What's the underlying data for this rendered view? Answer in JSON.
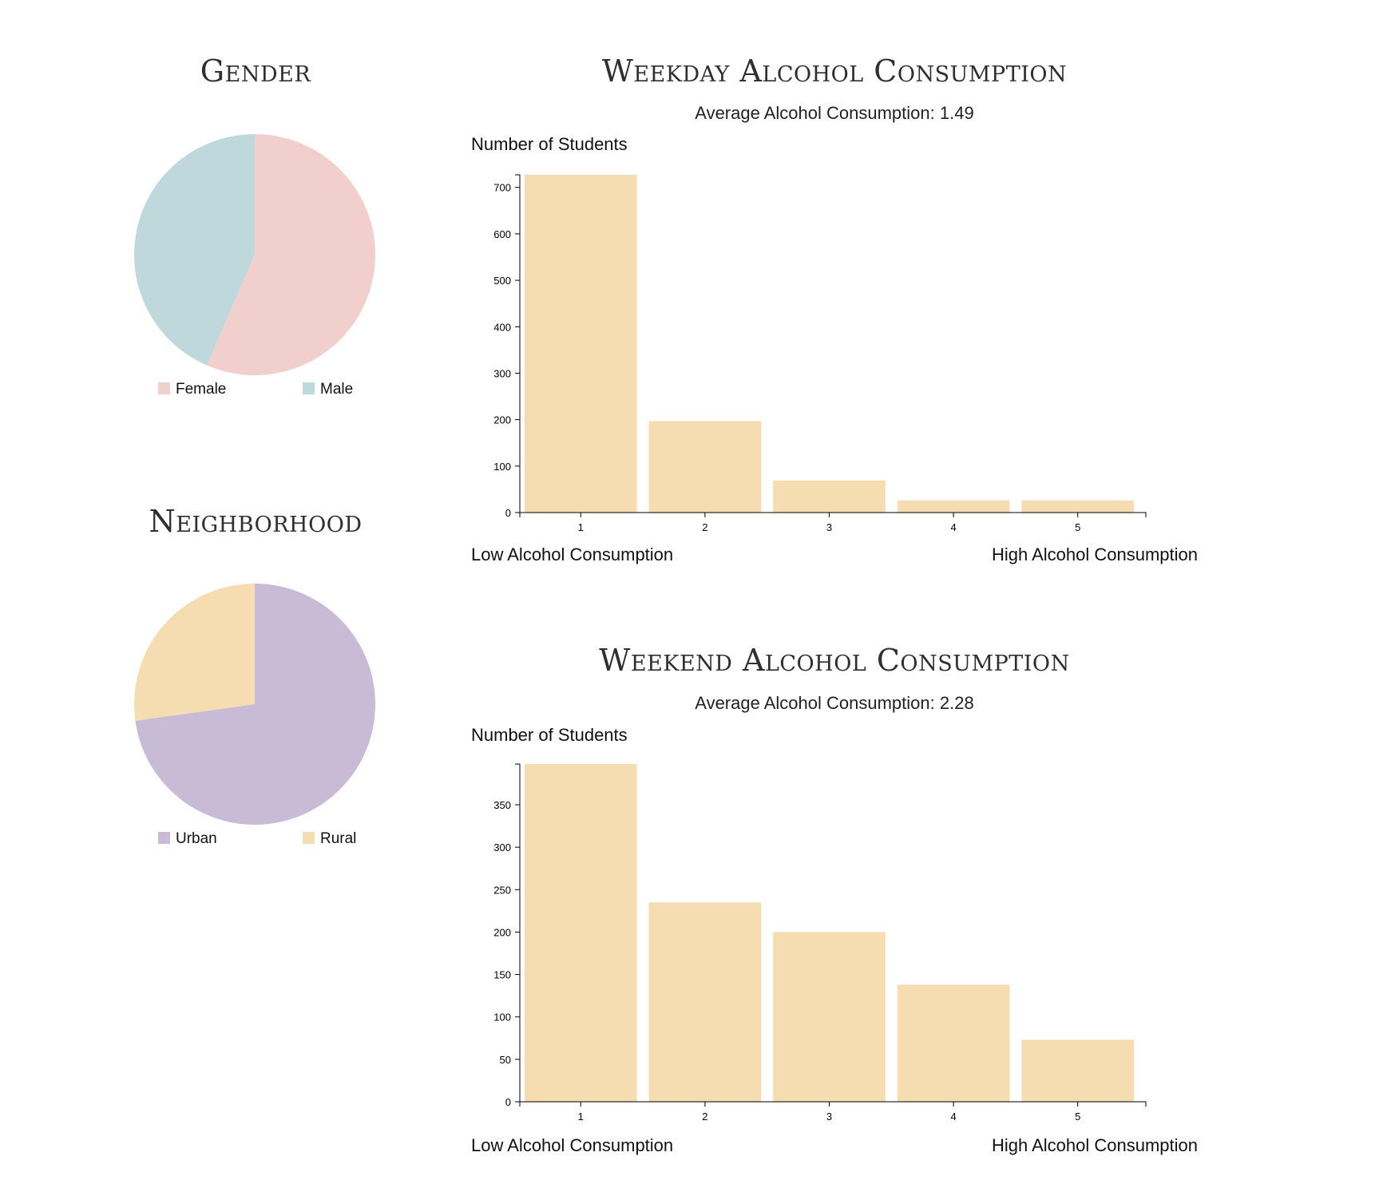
{
  "chart_data": [
    {
      "type": "pie",
      "title": "Gender",
      "slices": [
        {
          "label": "Female",
          "value": 0.565,
          "color": "#f1cfcc"
        },
        {
          "label": "Male",
          "value": 0.435,
          "color": "#bed8dc"
        }
      ],
      "legend_placement": "bottom"
    },
    {
      "type": "pie",
      "title": "Neighborhood",
      "slices": [
        {
          "label": "Urban",
          "value": 0.728,
          "color": "#c9bad6"
        },
        {
          "label": "Rural",
          "value": 0.272,
          "color": "#f6ddb1"
        }
      ],
      "legend_placement": "bottom"
    },
    {
      "type": "bar",
      "title": "Weekday Alcohol Consumption",
      "subtitle": "Average Alcohol Consumption: 1.49",
      "ylabel": "Number of Students",
      "xlabel_left": "Low Alcohol Consumption",
      "xlabel_right": "High Alcohol Consumption",
      "categories": [
        "1",
        "2",
        "3",
        "4",
        "5"
      ],
      "values": [
        727,
        197,
        69,
        26,
        26
      ],
      "ylim": [
        0,
        727
      ],
      "yticks": [
        0,
        100,
        200,
        300,
        400,
        500,
        600,
        700
      ],
      "bar_color": "#f6ddb1",
      "grid": false
    },
    {
      "type": "bar",
      "title": "Weekend Alcohol Consumption",
      "subtitle": "Average Alcohol Consumption: 2.28",
      "ylabel": "Number of Students",
      "xlabel_left": "Low Alcohol Consumption",
      "xlabel_right": "High Alcohol Consumption",
      "categories": [
        "1",
        "2",
        "3",
        "4",
        "5"
      ],
      "values": [
        398,
        235,
        200,
        138,
        73
      ],
      "ylim": [
        0,
        398
      ],
      "yticks": [
        0,
        50,
        100,
        150,
        200,
        250,
        300,
        350
      ],
      "bar_color": "#f6ddb1",
      "grid": false
    }
  ]
}
